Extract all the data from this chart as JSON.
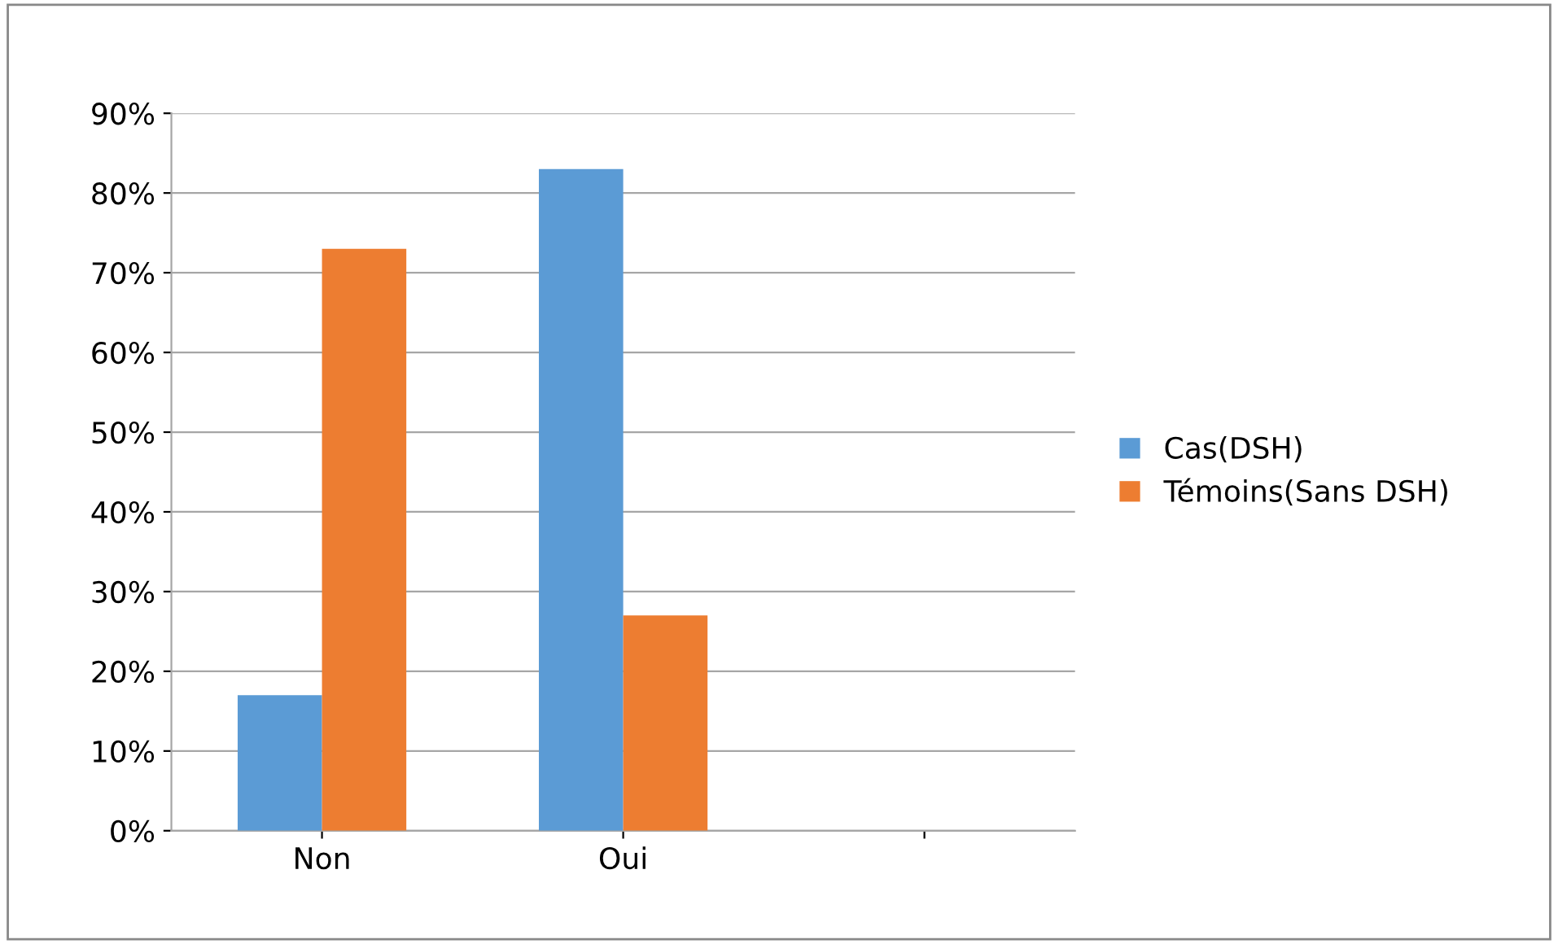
{
  "chart_data": {
    "type": "bar",
    "categories": [
      "Non",
      "Oui",
      null
    ],
    "series": [
      {
        "name": "Cas(DSH)",
        "color": "#5b9bd5",
        "values": [
          17,
          83,
          null
        ]
      },
      {
        "name": "Témoins(Sans DSH)",
        "color": "#ed7d31",
        "values": [
          73,
          27,
          null
        ]
      }
    ],
    "ylim": [
      0,
      90
    ],
    "yticks": [
      {
        "value": 0,
        "label": "0%"
      },
      {
        "value": 10,
        "label": "10%"
      },
      {
        "value": 20,
        "label": "20%"
      },
      {
        "value": 30,
        "label": "30%"
      },
      {
        "value": 40,
        "label": "40%"
      },
      {
        "value": 50,
        "label": "50%"
      },
      {
        "value": 60,
        "label": "60%"
      },
      {
        "value": 70,
        "label": "70%"
      },
      {
        "value": 80,
        "label": "80%"
      },
      {
        "value": 90,
        "label": "90%"
      }
    ],
    "grid": "y",
    "legend": "right"
  }
}
